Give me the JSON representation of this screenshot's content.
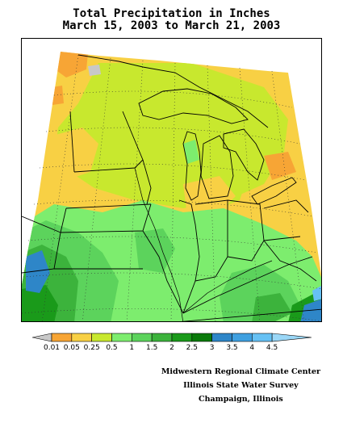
{
  "header": {
    "title_line1": "Total Precipitation in Inches",
    "title_line2": "March 15, 2003 to March 21, 2003"
  },
  "legend": {
    "labels": [
      "0.01",
      "0.05",
      "0.25",
      "0.5",
      "1",
      "1.5",
      "2",
      "2.5",
      "3",
      "3.5",
      "4",
      "4.5"
    ],
    "colors": [
      "#c8c8c8",
      "#f7a535",
      "#f8d044",
      "#c8e82e",
      "#7ded6e",
      "#5cd35c",
      "#3cb33c",
      "#1a9a1a",
      "#0a7a0a",
      "#2e86c8",
      "#3fa0e0",
      "#66c1f4"
    ]
  },
  "credits": {
    "line1": "Midwestern Regional Climate Center",
    "line2": "Illinois State Water Survey",
    "line3": "Champaign, Illinois"
  },
  "map": {
    "region": "Midwest United States",
    "palette": {
      "gray": "#c8c8c8",
      "orange": "#f7a535",
      "yellow": "#f8d044",
      "lime": "#c8e82e",
      "lightgreen": "#7ded6e",
      "green1": "#5cd35c",
      "green2": "#3cb33c",
      "green3": "#1a9a1a",
      "darkgreen": "#0a7a0a",
      "blue": "#2e86c8",
      "lightblue": "#66c1f4"
    }
  }
}
